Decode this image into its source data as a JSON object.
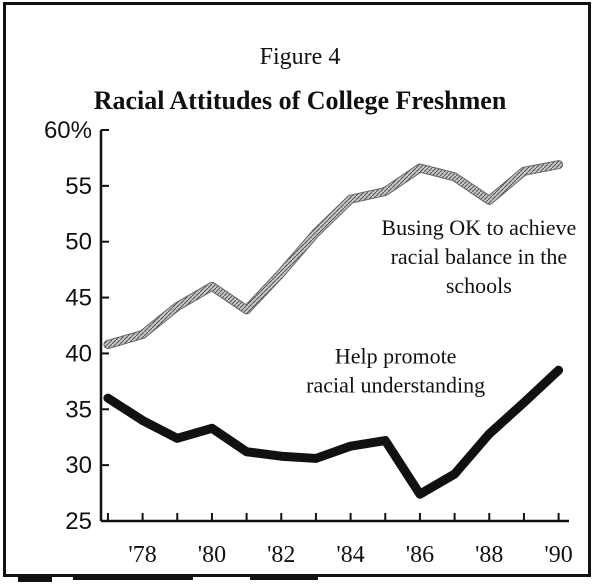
{
  "figure_label": "Figure 4",
  "chart_data": {
    "type": "line",
    "title": "Racial Attitudes of College Freshmen",
    "xlabel": "",
    "ylabel": "",
    "x": [
      1977,
      1978,
      1979,
      1980,
      1981,
      1982,
      1983,
      1984,
      1985,
      1986,
      1987,
      1988,
      1989,
      1990
    ],
    "x_tick_values": [
      1978,
      1980,
      1982,
      1984,
      1986,
      1988,
      1990
    ],
    "x_tick_labels": [
      "'78",
      "'80",
      "'82",
      "'84",
      "'86",
      "'88",
      "'90"
    ],
    "xlim": [
      1976.8,
      1990.3
    ],
    "y_ticks": [
      25,
      30,
      35,
      40,
      45,
      50,
      55,
      60
    ],
    "y_tick_labels": [
      "25",
      "30",
      "35",
      "40",
      "45",
      "50",
      "55",
      "60%"
    ],
    "ylim": [
      25,
      60
    ],
    "series": [
      {
        "id": "busing",
        "values": [
          40.8,
          41.7,
          44.2,
          46.0,
          43.9,
          47.2,
          50.8,
          53.8,
          54.5,
          56.6,
          55.8,
          53.7,
          56.3,
          56.9
        ],
        "color": "#9a9a9a",
        "style": "hatched"
      },
      {
        "id": "racial-understanding",
        "values": [
          36.0,
          34.0,
          32.4,
          33.3,
          31.2,
          30.8,
          30.6,
          31.7,
          32.2,
          27.4,
          29.2,
          32.8,
          35.6,
          38.5
        ],
        "color": "#111111",
        "style": "solid"
      }
    ],
    "annotations": [
      {
        "for": "busing",
        "lines": [
          "Busing OK to achieve",
          "racial balance in the",
          "schools"
        ],
        "anchor_x": 1987.7,
        "anchor_y": 50.6
      },
      {
        "for": "racial-understanding",
        "lines": [
          "Help promote",
          "racial understanding"
        ],
        "anchor_x": 1985.3,
        "anchor_y": 39.1
      }
    ],
    "grid": false,
    "legend": "none"
  }
}
